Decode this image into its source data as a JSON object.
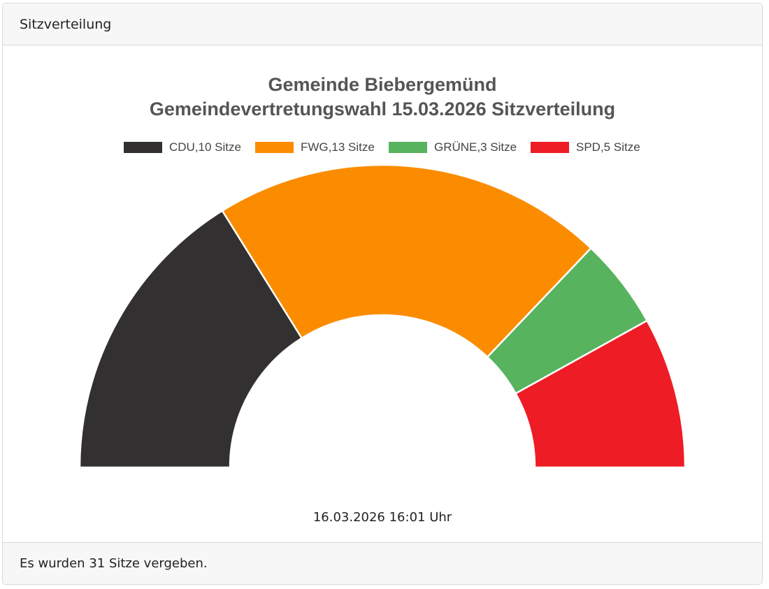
{
  "panel": {
    "title": "Sitzverteilung",
    "footer": "Es wurden 31 Sitze vergeben."
  },
  "chart_data": {
    "type": "half-doughnut",
    "title": [
      "Gemeinde Biebergemünd",
      "Gemeindevertretungswahl 15.03.2026 Sitzverteilung"
    ],
    "legend_position": "top",
    "series": [
      {
        "name": "CDU,10 Sitze",
        "party": "CDU",
        "value": 10,
        "color": "#323031"
      },
      {
        "name": "FWG,13 Sitze",
        "party": "FWG",
        "value": 13,
        "color": "#fb8c00"
      },
      {
        "name": "GRÜNE,3 Sitze",
        "party": "GRÜNE",
        "value": 3,
        "color": "#57b35e"
      },
      {
        "name": "SPD,5 Sitze",
        "party": "SPD",
        "value": 5,
        "color": "#ee1c25"
      }
    ],
    "timestamp": "16.03.2026 16:01 Uhr"
  }
}
